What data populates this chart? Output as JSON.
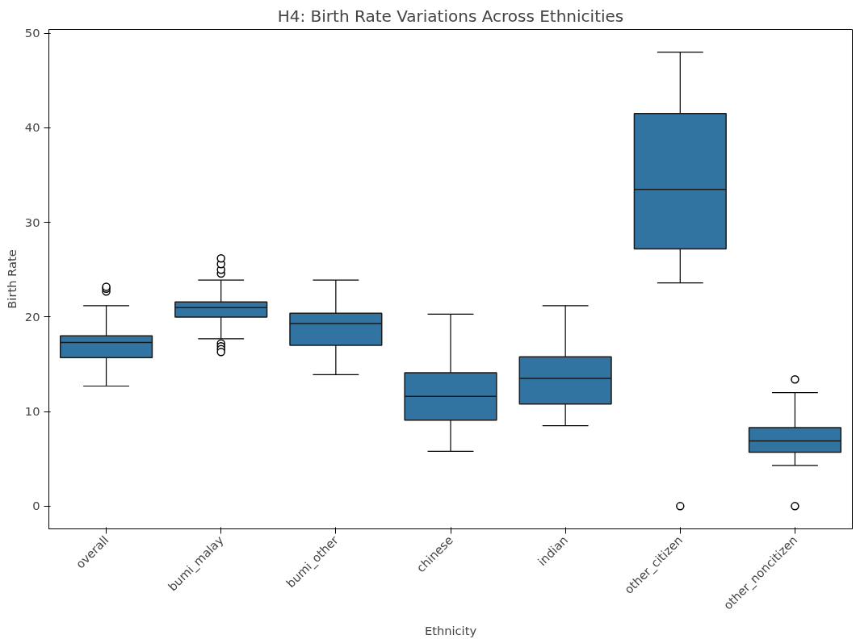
{
  "chart_data": {
    "type": "box",
    "title": "H4: Birth Rate Variations Across Ethnicities",
    "xlabel": "Ethnicity",
    "ylabel": "Birth Rate",
    "categories": [
      "overall",
      "bumi_malay",
      "bumi_other",
      "chinese",
      "indian",
      "other_citizen",
      "other_noncitizen"
    ],
    "series": [
      {
        "color": "#3274a1",
        "boxes": [
          {
            "low": 12.7,
            "q1": 15.7,
            "median": 17.3,
            "q3": 18.0,
            "high": 21.2,
            "outliers": [
              22.7,
              23.0,
              23.2
            ]
          },
          {
            "low": 17.7,
            "q1": 20.0,
            "median": 21.0,
            "q3": 21.6,
            "high": 23.9,
            "outliers": [
              24.6,
              25.0,
              25.6,
              26.2,
              17.2,
              16.9,
              16.6,
              16.3
            ]
          },
          {
            "low": 13.9,
            "q1": 17.0,
            "median": 19.3,
            "q3": 20.4,
            "high": 23.9
          },
          {
            "low": 5.8,
            "q1": 9.1,
            "median": 11.6,
            "q3": 14.1,
            "high": 20.3
          },
          {
            "low": 8.5,
            "q1": 10.8,
            "median": 13.5,
            "q3": 15.8,
            "high": 21.2
          },
          {
            "low": 23.6,
            "q1": 27.2,
            "median": 33.5,
            "q3": 41.5,
            "high": 48.0,
            "outliers": [
              0
            ]
          },
          {
            "low": 4.3,
            "q1": 5.7,
            "median": 6.9,
            "q3": 8.3,
            "high": 12.0,
            "outliers": [
              13.4,
              0
            ]
          }
        ]
      }
    ],
    "ylim": [
      -2.4,
      50.4
    ],
    "yticks": [
      0,
      10,
      20,
      30,
      40,
      50
    ],
    "grid": false
  }
}
